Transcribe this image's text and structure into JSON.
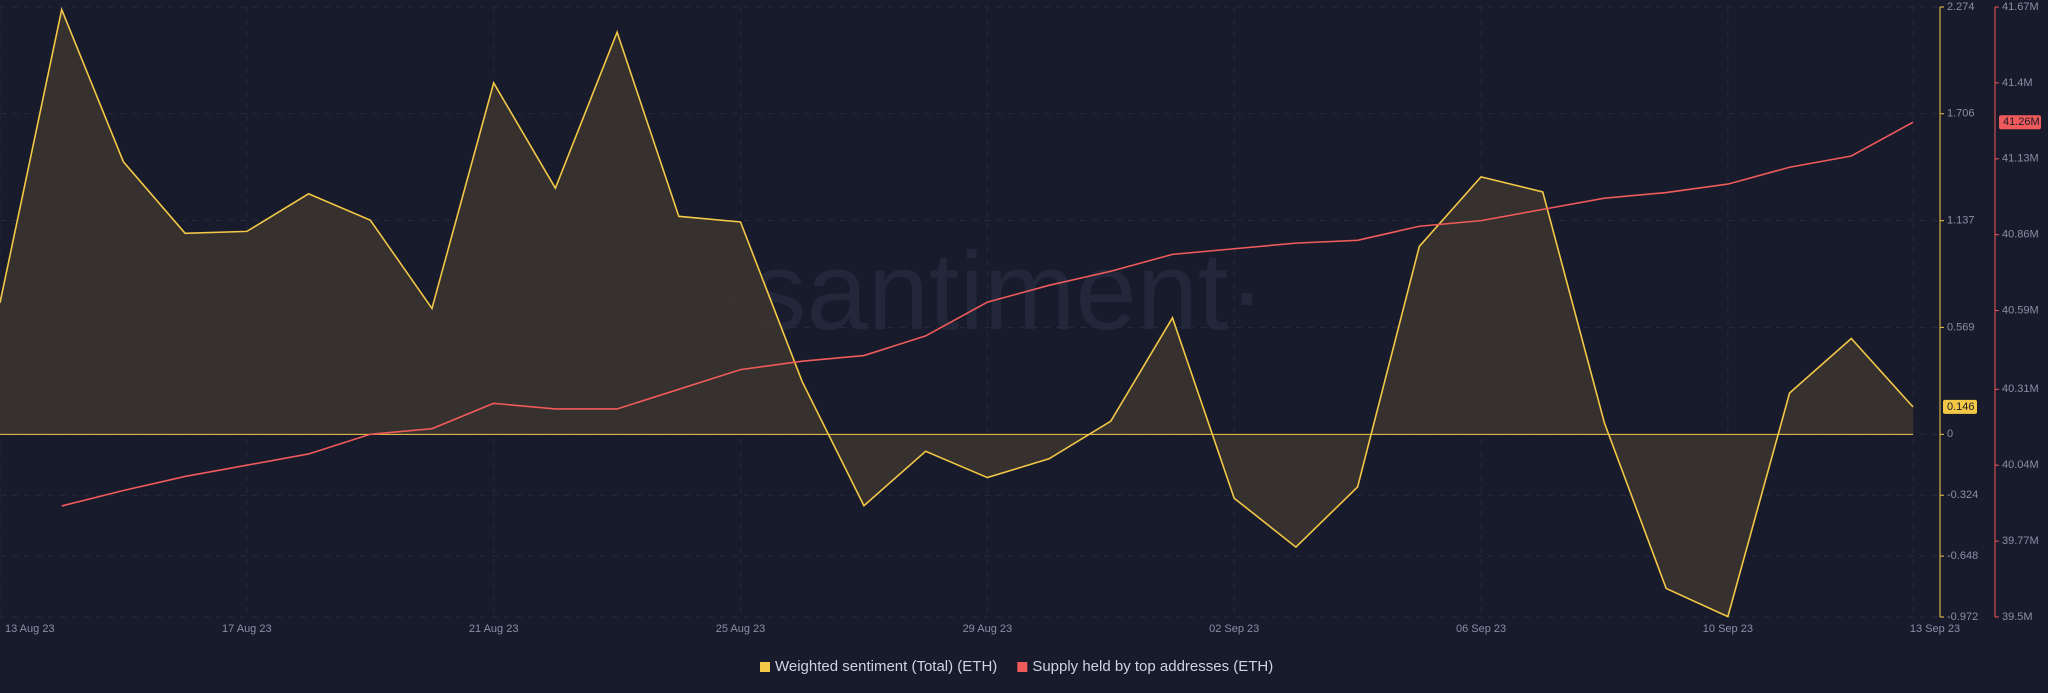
{
  "chart_data": {
    "type": "line",
    "watermark": "·santiment·",
    "categories": [
      "13 Aug 23",
      null,
      null,
      null,
      "17 Aug 23",
      null,
      null,
      null,
      "21 Aug 23",
      null,
      null,
      null,
      "25 Aug 23",
      null,
      null,
      null,
      "29 Aug 23",
      null,
      null,
      null,
      "02 Sep 23",
      null,
      null,
      null,
      "06 Sep 23",
      null,
      null,
      null,
      "10 Sep 23",
      null,
      null,
      "13 Sep 23"
    ],
    "series": [
      {
        "name": "Weighted sentiment (Total) (ETH)",
        "color": "#f3c846",
        "axis": "y",
        "values": [
          0.7,
          2.26,
          1.45,
          1.07,
          1.08,
          1.28,
          1.14,
          0.67,
          1.87,
          1.31,
          2.14,
          1.16,
          1.13,
          0.28,
          -0.38,
          -0.09,
          -0.23,
          -0.13,
          0.07,
          0.62,
          -0.34,
          -0.6,
          -0.28,
          1.0,
          1.37,
          1.29,
          0.06,
          -0.82,
          -0.97,
          0.22,
          0.51,
          0.146
        ],
        "value_labels": [
          null,
          null,
          null,
          null,
          null,
          null,
          null,
          null,
          null,
          null,
          null,
          null,
          null,
          null,
          null,
          null,
          null,
          null,
          null,
          null,
          null,
          null,
          null,
          null,
          null,
          null,
          null,
          null,
          null,
          null,
          null,
          "0.146"
        ]
      },
      {
        "name": "Supply held by top addresses (ETH)",
        "color": "#ef5a5a",
        "axis": "y2",
        "values": [
          null,
          39.895,
          39.95,
          40.0,
          40.04,
          40.08,
          40.15,
          40.17,
          40.26,
          40.24,
          40.24,
          40.31,
          40.38,
          40.41,
          40.43,
          40.5,
          40.62,
          40.68,
          40.73,
          40.79,
          40.81,
          40.83,
          40.84,
          40.89,
          40.91,
          40.95,
          40.99,
          41.01,
          41.04,
          41.1,
          41.14,
          41.26
        ],
        "value_labels": [
          null,
          null,
          null,
          null,
          null,
          null,
          null,
          null,
          null,
          null,
          null,
          null,
          null,
          null,
          null,
          null,
          null,
          null,
          null,
          null,
          null,
          null,
          null,
          null,
          null,
          null,
          null,
          null,
          null,
          null,
          null,
          "41.26M"
        ]
      }
    ],
    "ylim": [
      -0.972,
      2.274
    ],
    "yticks": [
      2.274,
      1.706,
      1.137,
      0.569,
      0,
      -0.324,
      -0.648,
      -0.972
    ],
    "y2lim": [
      39.5,
      41.67
    ],
    "y2ticks": [
      {
        "value": 41.67,
        "label": "41.67M"
      },
      {
        "value": 41.4,
        "label": "41.4M"
      },
      {
        "value": 41.13,
        "label": "41.13M"
      },
      {
        "value": 40.86,
        "label": "40.86M"
      },
      {
        "value": 40.59,
        "label": "40.59M"
      },
      {
        "value": 40.31,
        "label": "40.31M"
      },
      {
        "value": 40.04,
        "label": "40.04M"
      },
      {
        "value": 39.77,
        "label": "39.77M"
      },
      {
        "value": 39.5,
        "label": "39.5M"
      }
    ],
    "grid": true
  }
}
